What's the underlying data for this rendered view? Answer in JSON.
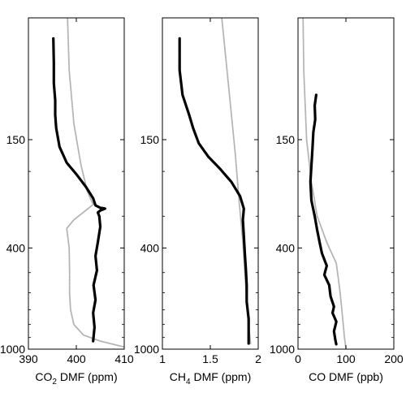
{
  "chart_data": [
    {
      "type": "line",
      "xlabel_main": "CO",
      "xlabel_sub": "2",
      "xlabel_rest": " DMF (ppm)",
      "xlim": [
        390,
        410
      ],
      "ylim": [
        1000,
        0
      ],
      "y_scale": "log",
      "xticks": [
        390,
        400,
        410
      ],
      "xtick_labels": [
        "390",
        "400",
        "410"
      ],
      "yticks": [
        150,
        400,
        1000
      ],
      "ytick_labels": [
        "150",
        "400",
        "1000"
      ],
      "grid": false,
      "series": [
        {
          "style": "measured",
          "color": "#000000",
          "points": [
            [
              395.2,
              60
            ],
            [
              395.3,
              75
            ],
            [
              395.3,
              90
            ],
            [
              395.6,
              105
            ],
            [
              395.6,
              120
            ],
            [
              395.8,
              135
            ],
            [
              396.5,
              160
            ],
            [
              398.0,
              185
            ],
            [
              400.0,
              205
            ],
            [
              402.0,
              230
            ],
            [
              403.5,
              255
            ],
            [
              404.0,
              272
            ],
            [
              405.0,
              278
            ],
            [
              406.0,
              280
            ],
            [
              405.0,
              285
            ],
            [
              404.5,
              290
            ],
            [
              404.8,
              300
            ],
            [
              405.0,
              330
            ],
            [
              404.5,
              380
            ],
            [
              404.0,
              430
            ],
            [
              404.3,
              490
            ],
            [
              403.6,
              560
            ],
            [
              404.0,
              640
            ],
            [
              403.5,
              720
            ],
            [
              403.8,
              820
            ],
            [
              403.5,
              930
            ]
          ]
        },
        {
          "style": "model",
          "color": "#b3b3b3",
          "points": [
            [
              397.5,
              10
            ],
            [
              398.0,
              40
            ],
            [
              398.5,
              80
            ],
            [
              399.5,
              130
            ],
            [
              401.0,
              190
            ],
            [
              402.3,
              240
            ],
            [
              403.5,
              270
            ],
            [
              399.5,
              310
            ],
            [
              398.0,
              335
            ],
            [
              398.5,
              400
            ],
            [
              398.6,
              500
            ],
            [
              398.6,
              600
            ],
            [
              398.8,
              700
            ],
            [
              399.5,
              800
            ],
            [
              401.5,
              880
            ],
            [
              405.0,
              930
            ],
            [
              410.0,
              980
            ]
          ]
        }
      ]
    },
    {
      "type": "line",
      "xlabel_main": "CH",
      "xlabel_sub": "4",
      "xlabel_rest": " DMF (ppm)",
      "xlim": [
        1,
        2
      ],
      "ylim": [
        1000,
        0
      ],
      "y_scale": "log",
      "xticks": [
        1,
        1.5,
        2
      ],
      "xtick_labels": [
        "1",
        "1.5",
        "2"
      ],
      "yticks": [
        150,
        400,
        1000
      ],
      "ytick_labels": [
        "150",
        "400",
        "1000"
      ],
      "grid": false,
      "series": [
        {
          "style": "measured",
          "color": "#000000",
          "points": [
            [
              1.18,
              60
            ],
            [
              1.18,
              80
            ],
            [
              1.21,
              100
            ],
            [
              1.28,
              120
            ],
            [
              1.32,
              135
            ],
            [
              1.38,
              155
            ],
            [
              1.48,
              175
            ],
            [
              1.6,
              195
            ],
            [
              1.72,
              220
            ],
            [
              1.81,
              250
            ],
            [
              1.85,
              280
            ],
            [
              1.84,
              310
            ],
            [
              1.85,
              360
            ],
            [
              1.86,
              420
            ],
            [
              1.87,
              480
            ],
            [
              1.88,
              560
            ],
            [
              1.88,
              650
            ],
            [
              1.9,
              760
            ],
            [
              1.9,
              870
            ],
            [
              1.9,
              950
            ]
          ]
        },
        {
          "style": "model",
          "color": "#b3b3b3",
          "points": [
            [
              1.47,
              5
            ],
            [
              1.55,
              20
            ],
            [
              1.62,
              50
            ],
            [
              1.7,
              100
            ],
            [
              1.76,
              170
            ],
            [
              1.8,
              260
            ],
            [
              1.84,
              380
            ],
            [
              1.86,
              500
            ],
            [
              1.88,
              650
            ],
            [
              1.9,
              800
            ],
            [
              1.92,
              950
            ]
          ]
        }
      ]
    },
    {
      "type": "line",
      "xlabel_main": "CO DMF (ppb)",
      "xlabel_sub": "",
      "xlabel_rest": "",
      "xlim": [
        0,
        200
      ],
      "ylim": [
        1000,
        0
      ],
      "y_scale": "log",
      "xticks": [
        0,
        100,
        200
      ],
      "xtick_labels": [
        "0",
        "100",
        "200"
      ],
      "yticks": [
        150,
        400,
        1000
      ],
      "ytick_labels": [
        "150",
        "400",
        "1000"
      ],
      "grid": false,
      "series": [
        {
          "style": "measured",
          "color": "#000000",
          "points": [
            [
              38,
              100
            ],
            [
              35,
              110
            ],
            [
              36,
              125
            ],
            [
              32,
              140
            ],
            [
              30,
              165
            ],
            [
              28,
              190
            ],
            [
              26,
              220
            ],
            [
              28,
              260
            ],
            [
              35,
              300
            ],
            [
              40,
              340
            ],
            [
              45,
              380
            ],
            [
              50,
              420
            ],
            [
              60,
              470
            ],
            [
              55,
              510
            ],
            [
              65,
              560
            ],
            [
              68,
              620
            ],
            [
              75,
              680
            ],
            [
              72,
              720
            ],
            [
              80,
              780
            ],
            [
              75,
              850
            ],
            [
              78,
              920
            ],
            [
              80,
              960
            ]
          ]
        },
        {
          "style": "model",
          "color": "#b3b3b3",
          "points": [
            [
              8,
              5
            ],
            [
              9,
              30
            ],
            [
              12,
              80
            ],
            [
              18,
              150
            ],
            [
              28,
              220
            ],
            [
              40,
              300
            ],
            [
              60,
              380
            ],
            [
              80,
              460
            ],
            [
              88,
              600
            ],
            [
              93,
              750
            ],
            [
              97,
              900
            ],
            [
              100,
              990
            ]
          ]
        }
      ]
    }
  ]
}
